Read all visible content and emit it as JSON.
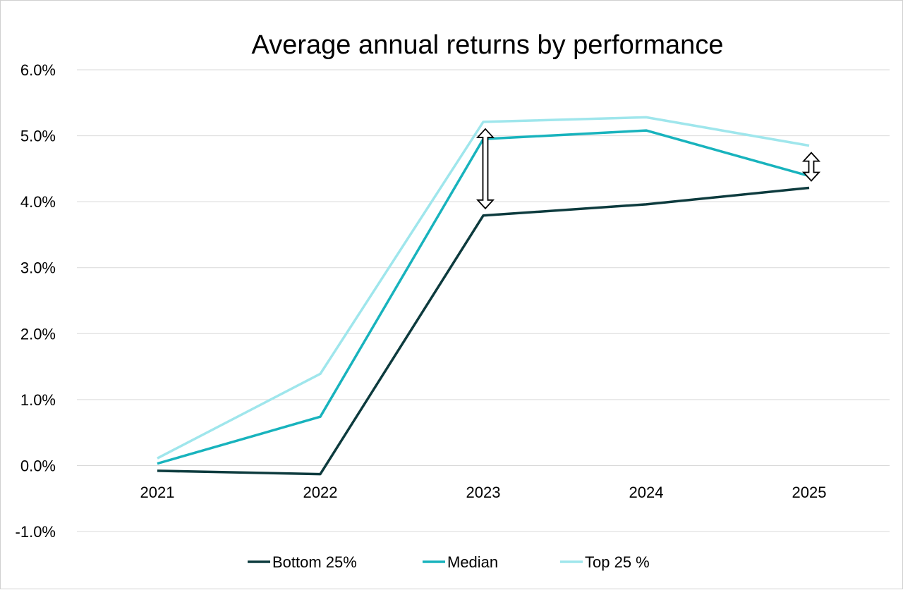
{
  "chart_data": {
    "type": "line",
    "title": "Average annual returns by performance",
    "xlabel": "",
    "ylabel": "",
    "categories": [
      "2021",
      "2022",
      "2023",
      "2024",
      "2025"
    ],
    "ylim": [
      -1.0,
      6.0
    ],
    "y_ticks": [
      6.0,
      5.0,
      4.0,
      3.0,
      2.0,
      1.0,
      0.0,
      -1.0
    ],
    "y_tick_labels": [
      "6.0%",
      "5.0%",
      "4.0%",
      "3.0%",
      "2.0%",
      "1.0%",
      "0.0%",
      "-1.0%"
    ],
    "grid": true,
    "legend_position": "bottom",
    "series": [
      {
        "name": "Bottom 25%",
        "color": "#0d3b3e",
        "values": [
          -0.08,
          -0.13,
          3.79,
          3.96,
          4.21
        ]
      },
      {
        "name": "Median",
        "color": "#18b3bd",
        "values": [
          0.03,
          0.74,
          4.95,
          5.08,
          4.39
        ]
      },
      {
        "name": "Top 25 %",
        "color": "#9fe6ec",
        "values": [
          0.11,
          1.39,
          5.21,
          5.28,
          4.85
        ]
      }
    ],
    "annotations": [
      {
        "type": "double-arrow",
        "category": "2023",
        "from_value": 3.79,
        "to_value": 5.21
      },
      {
        "type": "double-arrow",
        "category": "2025",
        "from_value": 4.21,
        "to_value": 4.85
      }
    ]
  }
}
